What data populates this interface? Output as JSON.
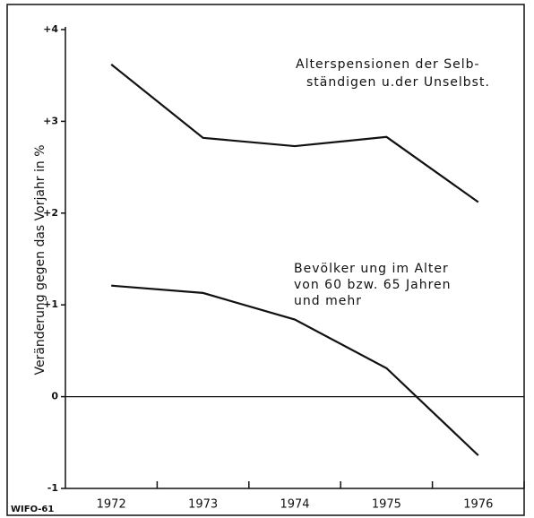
{
  "chart_data": {
    "type": "line",
    "y_label": "Veränderung gegen das Vorjahr in %",
    "source": "WIFO-61",
    "categories": [
      "1972",
      "1973",
      "1974",
      "1975",
      "1976"
    ],
    "series": [
      {
        "color": "#111111",
        "values": [
          3.62,
          2.82,
          2.73,
          2.83,
          2.12
        ]
      },
      {
        "color": "#111111",
        "values": [
          1.21,
          1.13,
          0.84,
          0.31,
          -0.64
        ]
      }
    ],
    "annotations": [
      {
        "lines": [
          "Alterspensionen der Selb-",
          "ständigen u.der Unselbst."
        ]
      },
      {
        "lines": [
          "Bevölker ung im Alter",
          "von 60 bzw. 65 Jahren",
          "und mehr"
        ]
      }
    ],
    "ylim": [
      -1,
      4
    ],
    "yticks": [
      {
        "value": 4,
        "label": "+4"
      },
      {
        "value": 3,
        "label": "+3"
      },
      {
        "value": 2,
        "label": "+2"
      },
      {
        "value": 1,
        "label": "+1"
      },
      0,
      -1
    ],
    "grid": false
  }
}
